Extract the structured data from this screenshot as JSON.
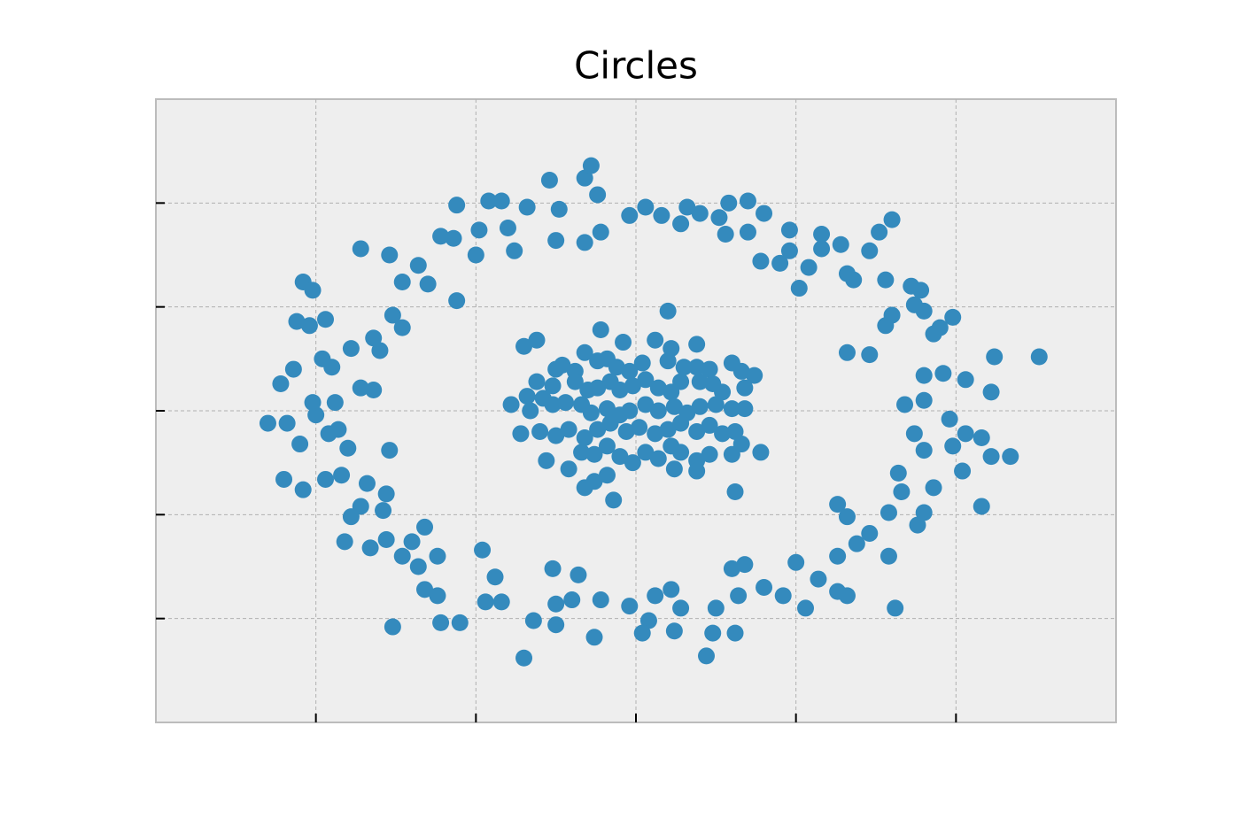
{
  "chart_data": {
    "type": "scatter",
    "title": "Circles",
    "color": "#348abd",
    "grid": true,
    "xlim": [
      -1.5,
      1.5
    ],
    "ylim": [
      -1.5,
      1.5
    ],
    "xticks": [
      -1,
      -0.5,
      0,
      0.5,
      1
    ],
    "yticks": [
      -1,
      -0.5,
      0,
      0.5,
      1
    ],
    "x": [
      -1.15,
      -1.09,
      -1.11,
      -1.07,
      -1.06,
      -1.02,
      -1.04,
      -1.01,
      -0.97,
      -0.98,
      -0.86,
      -0.77,
      -0.73,
      -0.68,
      -0.65,
      -0.56,
      -0.61,
      -0.57,
      -0.49,
      -0.5,
      -0.56,
      -0.46,
      -0.42,
      -0.4,
      -0.38,
      -0.34,
      -0.27,
      -0.24,
      -0.25,
      -0.16,
      -0.16,
      -0.14,
      -0.12,
      -0.11,
      -0.02,
      0.03,
      0.08,
      0.14,
      0.16,
      0.2,
      0.26,
      0.29,
      0.28,
      0.35,
      0.4,
      0.35,
      0.39,
      0.45,
      0.48,
      0.48,
      0.51,
      0.54,
      0.58,
      0.58,
      0.64,
      0.66,
      0.68,
      0.73,
      0.76,
      0.8,
      0.78,
      0.86,
      0.89,
      0.87,
      0.8,
      0.78,
      0.9,
      0.93,
      0.95,
      0.99,
      0.66,
      0.73,
      0.9,
      0.96,
      1.03,
      1.11,
      1.12,
      1.26,
      0.84,
      0.9,
      0.98,
      0.87,
      0.9,
      0.99,
      1.03,
      1.08,
      1.02,
      1.11,
      1.17,
      1.08,
      0.82,
      0.83,
      0.93,
      0.79,
      0.9,
      0.88,
      0.63,
      0.66,
      0.69,
      0.73,
      0.79,
      0.63,
      0.81,
      0.57,
      0.63,
      0.66,
      0.5,
      0.53,
      0.4,
      0.46,
      0.3,
      0.34,
      0.32,
      0.25,
      0.22,
      0.24,
      0.31,
      0.14,
      0.11,
      0.12,
      0.06,
      0.04,
      0.02,
      -0.02,
      -0.11,
      -0.13,
      -0.18,
      -0.2,
      -0.25,
      -0.25,
      -0.32,
      -0.35,
      -0.26,
      -0.42,
      -0.44,
      -0.47,
      -0.48,
      -0.55,
      -0.61,
      -0.62,
      -0.66,
      -0.62,
      -0.68,
      -0.7,
      -0.73,
      -0.78,
      -0.76,
      -0.66,
      -0.83,
      -0.91,
      -0.89,
      -0.79,
      -0.78,
      -0.86,
      -0.84,
      -0.92,
      -0.97,
      -1.04,
      -1.1,
      -0.9,
      -1.05,
      -0.77,
      -0.93,
      -0.96,
      -1.0,
      -1.01,
      -0.94,
      -0.86,
      -0.82,
      -0.8,
      -0.82,
      -0.89,
      -0.76,
      -0.73,
      -0.95,
      0.1,
      -0.11,
      -0.04,
      0.06,
      0.11,
      0.19,
      -0.35,
      -0.31,
      -0.25,
      -0.23,
      -0.19,
      -0.16,
      -0.12,
      -0.09,
      -0.06,
      -0.02,
      0.02,
      0.1,
      0.15,
      0.19,
      0.23,
      0.3,
      0.37,
      0.33,
      0.27,
      0.34,
      0.24,
      0.2,
      0.14,
      0.11,
      0.07,
      0.03,
      -0.01,
      -0.05,
      -0.08,
      -0.12,
      -0.15,
      -0.19,
      -0.26,
      -0.31,
      -0.34,
      -0.29,
      -0.39,
      -0.33,
      -0.26,
      -0.22,
      -0.17,
      -0.14,
      -0.09,
      -0.05,
      -0.02,
      0.03,
      0.07,
      0.12,
      0.16,
      0.2,
      0.25,
      0.3,
      0.34,
      -0.36,
      -0.3,
      -0.25,
      -0.21,
      -0.16,
      -0.12,
      -0.08,
      -0.03,
      0.01,
      0.06,
      0.1,
      0.14,
      0.19,
      0.23,
      0.27,
      0.31,
      0.33,
      0.39,
      0.3,
      0.23,
      0.19,
      0.14,
      0.11,
      0.07,
      0.03,
      -0.01,
      -0.05,
      -0.09,
      -0.13,
      -0.17,
      -0.21,
      -0.28,
      -0.16,
      -0.13,
      -0.09,
      -0.07,
      0.12,
      0.19,
      0.31
    ],
    "values": [
      -0.06,
      -0.06,
      0.13,
      0.2,
      0.43,
      0.41,
      0.62,
      0.58,
      0.44,
      0.25,
      0.78,
      0.75,
      0.62,
      0.7,
      0.61,
      0.53,
      0.84,
      0.83,
      0.87,
      0.75,
      0.99,
      1.01,
      1.01,
      0.88,
      0.77,
      0.98,
      1.11,
      0.97,
      0.82,
      0.81,
      1.12,
      1.18,
      1.04,
      0.86,
      0.94,
      0.98,
      0.94,
      0.9,
      0.98,
      0.95,
      0.93,
      1.0,
      0.85,
      1.01,
      0.95,
      0.86,
      0.72,
      0.71,
      0.87,
      0.77,
      0.59,
      0.69,
      0.85,
      0.78,
      0.8,
      0.66,
      0.63,
      0.77,
      0.86,
      0.92,
      0.63,
      0.6,
      0.58,
      0.51,
      0.46,
      0.41,
      0.48,
      0.37,
      0.4,
      0.45,
      0.28,
      0.27,
      0.17,
      0.18,
      0.15,
      0.09,
      0.26,
      0.26,
      0.03,
      0.05,
      -0.04,
      -0.11,
      -0.19,
      -0.17,
      -0.11,
      -0.13,
      -0.29,
      -0.22,
      -0.22,
      -0.46,
      -0.3,
      -0.39,
      -0.37,
      -0.49,
      -0.49,
      -0.55,
      -0.45,
      -0.51,
      -0.64,
      -0.59,
      -0.7,
      -0.7,
      -0.95,
      -0.81,
      -0.87,
      -0.89,
      -0.73,
      -0.95,
      -0.85,
      -0.89,
      -0.76,
      -0.74,
      -0.89,
      -0.95,
      -1.18,
      -1.07,
      -1.07,
      -0.95,
      -0.86,
      -1.06,
      -0.89,
      -1.01,
      -1.07,
      -0.94,
      -0.91,
      -1.09,
      -0.79,
      -0.91,
      -0.93,
      -1.03,
      -1.01,
      -1.19,
      -0.76,
      -0.92,
      -0.8,
      -0.92,
      -0.67,
      -1.02,
      -1.02,
      -0.89,
      -0.86,
      -0.7,
      -0.75,
      -0.63,
      -0.7,
      -0.62,
      -1.04,
      -0.56,
      -0.66,
      -0.63,
      -0.51,
      -0.48,
      -0.4,
      -0.46,
      -0.35,
      -0.31,
      -0.33,
      -0.38,
      -0.33,
      -0.18,
      -0.16,
      -0.19,
      -0.09,
      -0.11,
      -0.02,
      0.04,
      0.04,
      0.11,
      0.1,
      0.29,
      0.35,
      0.3,
      0.46,
      0.4,
      0.21,
      0.48,
      0.39,
      0.33,
      0.34,
      0.3,
      0.32,
      0.31,
      0.34,
      0.2,
      0.22,
      0.19,
      0.28,
      0.24,
      0.25,
      0.21,
      0.19,
      0.23,
      0.24,
      0.21,
      0.21,
      0.2,
      0.23,
      0.17,
      0.19,
      0.09,
      0.11,
      0.13,
      0.14,
      0.14,
      0.09,
      0.11,
      0.15,
      0.12,
      0.1,
      0.14,
      0.11,
      0.1,
      0.14,
      0.12,
      0.14,
      0.07,
      0.06,
      0.03,
      0.0,
      0.03,
      0.04,
      0.03,
      -0.01,
      0.01,
      -0.02,
      0.0,
      0.03,
      0.0,
      0.02,
      -0.01,
      0.02,
      0.03,
      0.01,
      0.01,
      -0.11,
      -0.1,
      -0.12,
      -0.09,
      -0.13,
      -0.09,
      -0.06,
      -0.1,
      -0.08,
      -0.11,
      -0.09,
      -0.06,
      -0.1,
      -0.07,
      -0.11,
      -0.1,
      -0.16,
      -0.2,
      -0.21,
      -0.21,
      -0.24,
      -0.2,
      -0.17,
      -0.23,
      -0.2,
      -0.25,
      -0.22,
      -0.17,
      -0.21,
      -0.2,
      -0.28,
      -0.24,
      -0.37,
      -0.34,
      -0.31,
      -0.43,
      -0.28,
      -0.29,
      -0.39
    ]
  }
}
